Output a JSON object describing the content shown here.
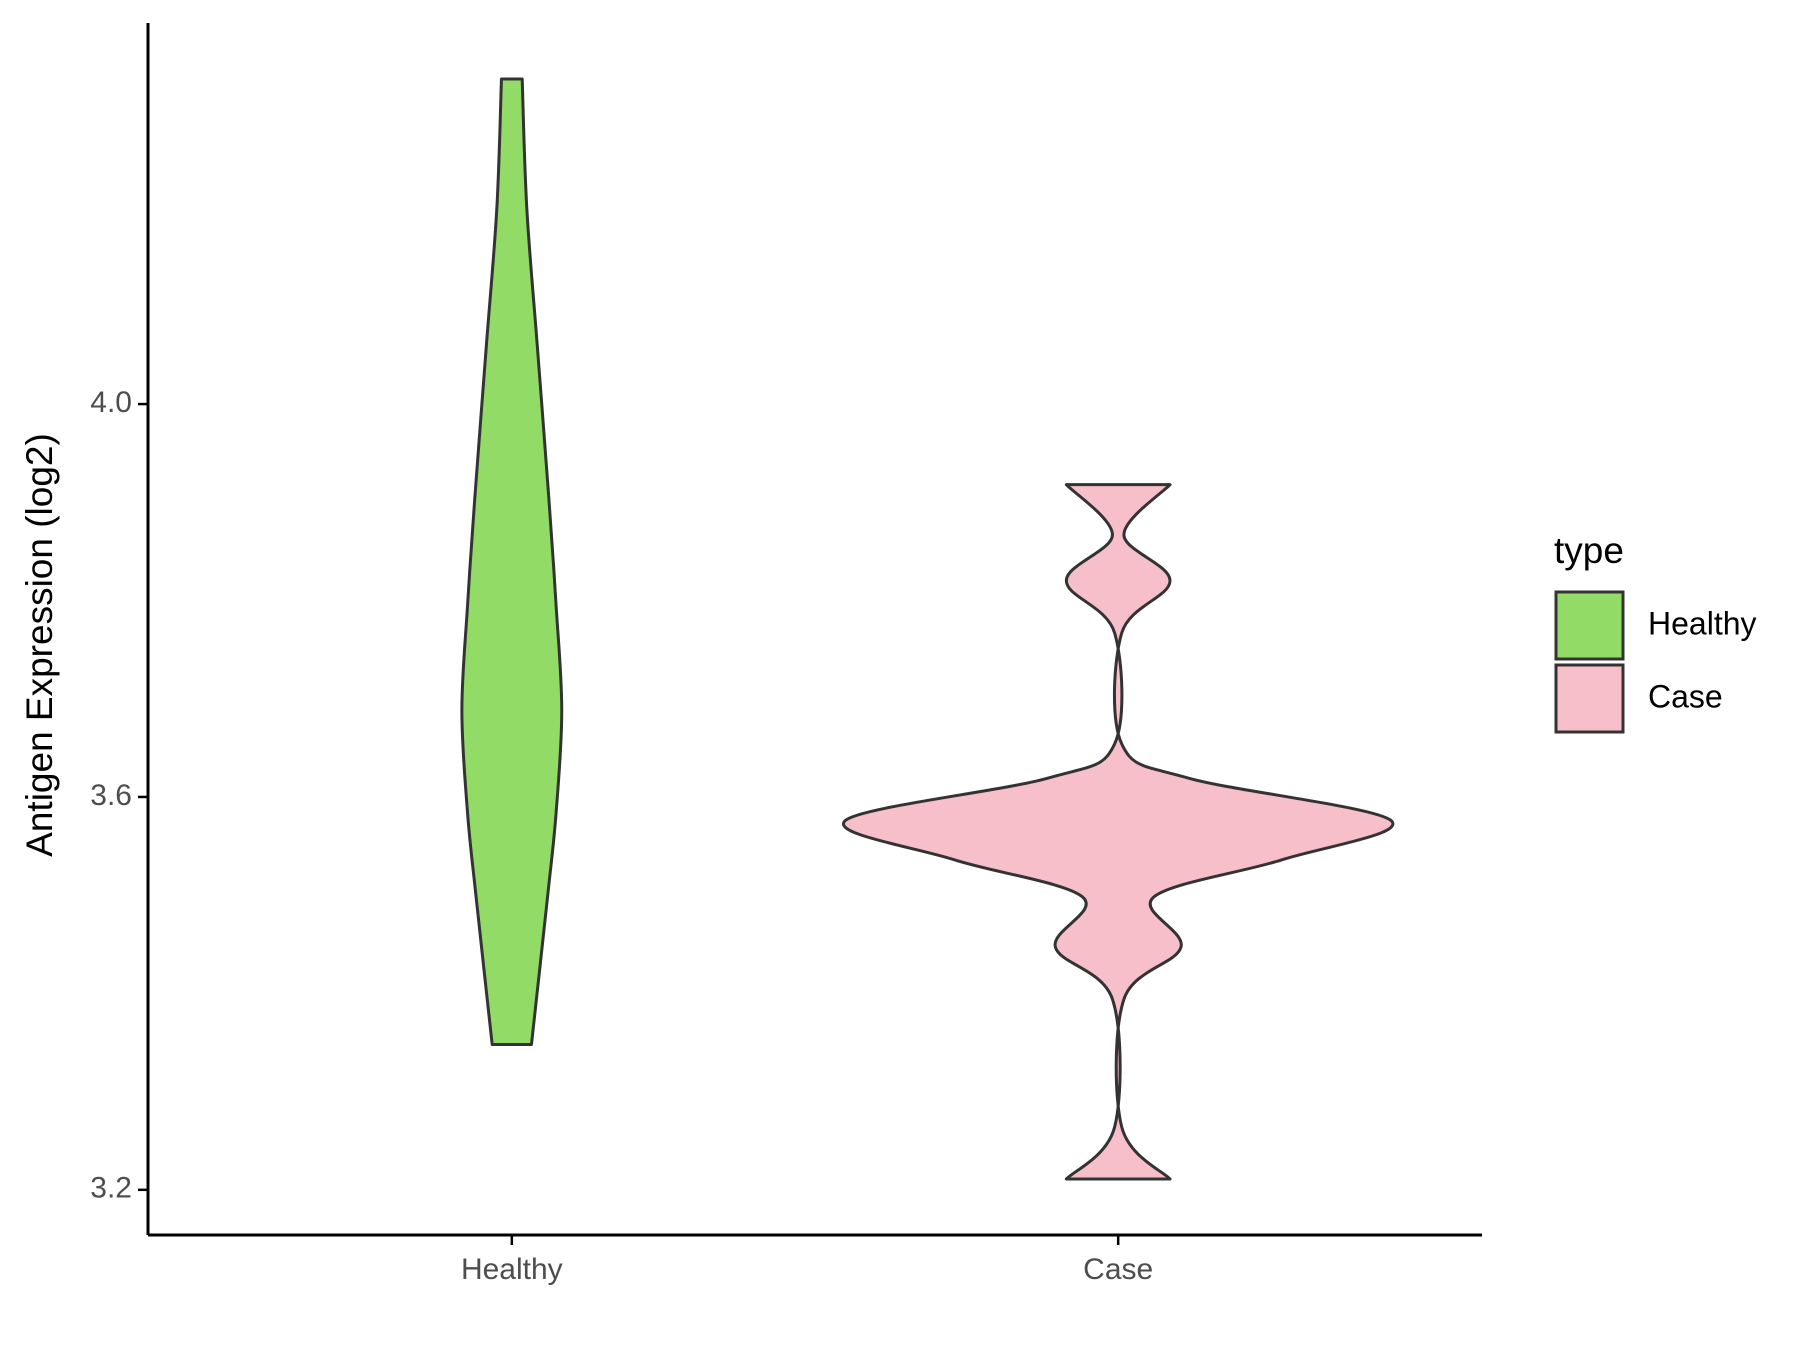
{
  "chart_data": {
    "type": "violin",
    "y_label": "Antigen Expression (log2)",
    "legend_title": "type",
    "categories": [
      "Healthy",
      "Case"
    ],
    "ylim": [
      3.154,
      4.388
    ],
    "yticks": [
      {
        "value": 3.2,
        "label": "3.2"
      },
      {
        "value": 3.6,
        "label": "3.6"
      },
      {
        "value": 4.0,
        "label": "4.0"
      }
    ],
    "series": [
      {
        "name": "Healthy",
        "color": "#93db67",
        "y": [
          3.348,
          3.501,
          3.583,
          3.688,
          3.796,
          3.903,
          4.057,
          4.199,
          4.331
        ],
        "density": [
          0.072,
          0.132,
          0.162,
          0.183,
          0.162,
          0.136,
          0.094,
          0.055,
          0.038
        ]
      },
      {
        "name": "Case",
        "color": "#f7bfca",
        "y": [
          3.211,
          3.264,
          3.394,
          3.447,
          3.498,
          3.536,
          3.576,
          3.619,
          3.654,
          3.767,
          3.82,
          3.867,
          3.918
        ],
        "density": [
          0.19,
          0.013,
          0.021,
          0.23,
          0.13,
          0.6,
          1.0,
          0.26,
          0.013,
          0.013,
          0.19,
          0.021,
          0.19
        ]
      }
    ]
  }
}
